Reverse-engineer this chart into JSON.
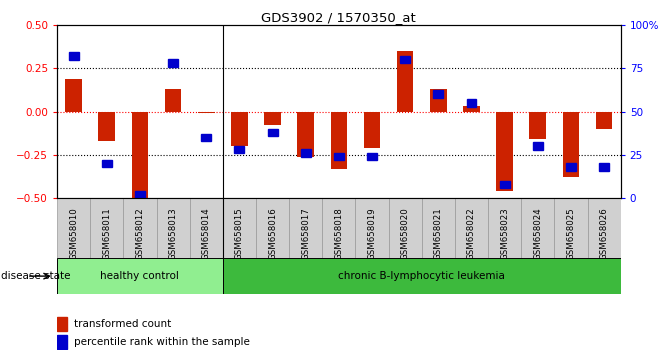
{
  "title": "GDS3902 / 1570350_at",
  "samples": [
    "GSM658010",
    "GSM658011",
    "GSM658012",
    "GSM658013",
    "GSM658014",
    "GSM658015",
    "GSM658016",
    "GSM658017",
    "GSM658018",
    "GSM658019",
    "GSM658020",
    "GSM658021",
    "GSM658022",
    "GSM658023",
    "GSM658024",
    "GSM658025",
    "GSM658026"
  ],
  "red_bars": [
    0.19,
    -0.17,
    -0.5,
    0.13,
    -0.01,
    -0.2,
    -0.08,
    -0.26,
    -0.33,
    -0.21,
    0.35,
    0.13,
    0.03,
    -0.46,
    -0.16,
    -0.38,
    -0.1
  ],
  "blue_vals": [
    82,
    20,
    2,
    78,
    35,
    28,
    38,
    26,
    24,
    24,
    80,
    60,
    55,
    8,
    30,
    18,
    18
  ],
  "group1_label": "healthy control",
  "group2_label": "chronic B-lymphocytic leukemia",
  "group1_count": 5,
  "disease_state_label": "disease state",
  "legend_red": "transformed count",
  "legend_blue": "percentile rank within the sample",
  "ylim": [
    -0.5,
    0.5
  ],
  "y_ticks_red": [
    -0.5,
    -0.25,
    0.0,
    0.25,
    0.5
  ],
  "y_ticks_blue": [
    0,
    25,
    50,
    75,
    100
  ],
  "group1_color": "#90ee90",
  "group2_color": "#3dba3d",
  "bar_color": "#cc2200",
  "blue_color": "#0000cc",
  "cell_color": "#d0d0d0",
  "cell_edge_color": "#999999"
}
